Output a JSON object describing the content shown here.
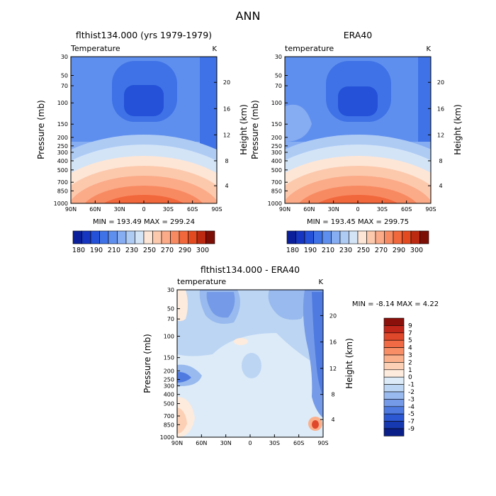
{
  "main_title": "ANN",
  "chart_data": [
    {
      "type": "heatmap",
      "id": "model",
      "title": "flthist134.000 (yrs 1979-1979)",
      "subtitle_left": "Temperature",
      "subtitle_right": "K",
      "ylabel": "Pressure (mb)",
      "y2label": "Height (km)",
      "xticks": [
        "90N",
        "60N",
        "30N",
        "0",
        "30S",
        "60S",
        "90S"
      ],
      "yticks": [
        "30",
        "50",
        "70",
        "100",
        "150",
        "200",
        "250",
        "300",
        "400",
        "500",
        "700",
        "850",
        "1000"
      ],
      "y2ticks": [
        "20",
        "16",
        "12",
        "8",
        "4"
      ],
      "stats": "MIN = 193.49   MAX = 299.24",
      "min": 193.49,
      "max": 299.24,
      "colorbar_labels": [
        "180",
        "190",
        "210",
        "230",
        "250",
        "270",
        "290",
        "300"
      ],
      "colorbar_colors": [
        "#0a1f99",
        "#1636c2",
        "#2451d8",
        "#3f72e6",
        "#5f8fee",
        "#86acf2",
        "#aecbf4",
        "#d3e4f7",
        "#fde6d6",
        "#fcc9ad",
        "#fbab88",
        "#f88a62",
        "#f2683d",
        "#e44a20",
        "#bd2a12",
        "#7d0e06"
      ]
    },
    {
      "type": "heatmap",
      "id": "obs",
      "title": "ERA40",
      "subtitle_left": "temperature",
      "subtitle_right": "K",
      "ylabel": "Pressure (mb)",
      "y2label": "Height (km)",
      "xticks": [
        "90N",
        "60N",
        "30N",
        "0",
        "30S",
        "60S",
        "90S"
      ],
      "yticks": [
        "30",
        "50",
        "70",
        "100",
        "150",
        "200",
        "250",
        "300",
        "400",
        "500",
        "700",
        "850",
        "1000"
      ],
      "y2ticks": [
        "20",
        "16",
        "12",
        "8",
        "4"
      ],
      "stats": "MIN = 193.45   MAX = 299.75",
      "min": 193.45,
      "max": 299.75,
      "colorbar_labels": [
        "180",
        "190",
        "210",
        "230",
        "250",
        "270",
        "290",
        "300"
      ],
      "colorbar_colors": [
        "#0a1f99",
        "#1636c2",
        "#2451d8",
        "#3f72e6",
        "#5f8fee",
        "#86acf2",
        "#aecbf4",
        "#d3e4f7",
        "#fde6d6",
        "#fcc9ad",
        "#fbab88",
        "#f88a62",
        "#f2683d",
        "#e44a20",
        "#bd2a12",
        "#7d0e06"
      ]
    },
    {
      "type": "heatmap",
      "id": "diff",
      "title": "flthist134.000 - ERA40",
      "subtitle_left": "temperature",
      "subtitle_right": "K",
      "ylabel": "Pressure (mb)",
      "y2label": "Height (km)",
      "xticks": [
        "90N",
        "60N",
        "30N",
        "0",
        "30S",
        "60S",
        "90S"
      ],
      "yticks": [
        "30",
        "50",
        "70",
        "100",
        "150",
        "200",
        "250",
        "300",
        "400",
        "500",
        "700",
        "850",
        "1000"
      ],
      "y2ticks": [
        "20",
        "16",
        "12",
        "8",
        "4"
      ],
      "stats": "MIN =  -8.14   MAX =   4.22",
      "min": -8.14,
      "max": 4.22,
      "colorbar_labels": [
        "9",
        "7",
        "5",
        "4",
        "3",
        "2",
        "1",
        "0",
        "-1",
        "-2",
        "-3",
        "-4",
        "-5",
        "-7",
        "-9"
      ],
      "colorbar_colors": [
        "#8b0f0a",
        "#c0261a",
        "#e0482b",
        "#f06a45",
        "#f88e66",
        "#fbb08c",
        "#fcd0b4",
        "#fdebdd",
        "#ddebf8",
        "#bcd5f3",
        "#99baee",
        "#759be8",
        "#4f7be1",
        "#2c58d3",
        "#1638b0",
        "#0b1f88"
      ]
    }
  ]
}
